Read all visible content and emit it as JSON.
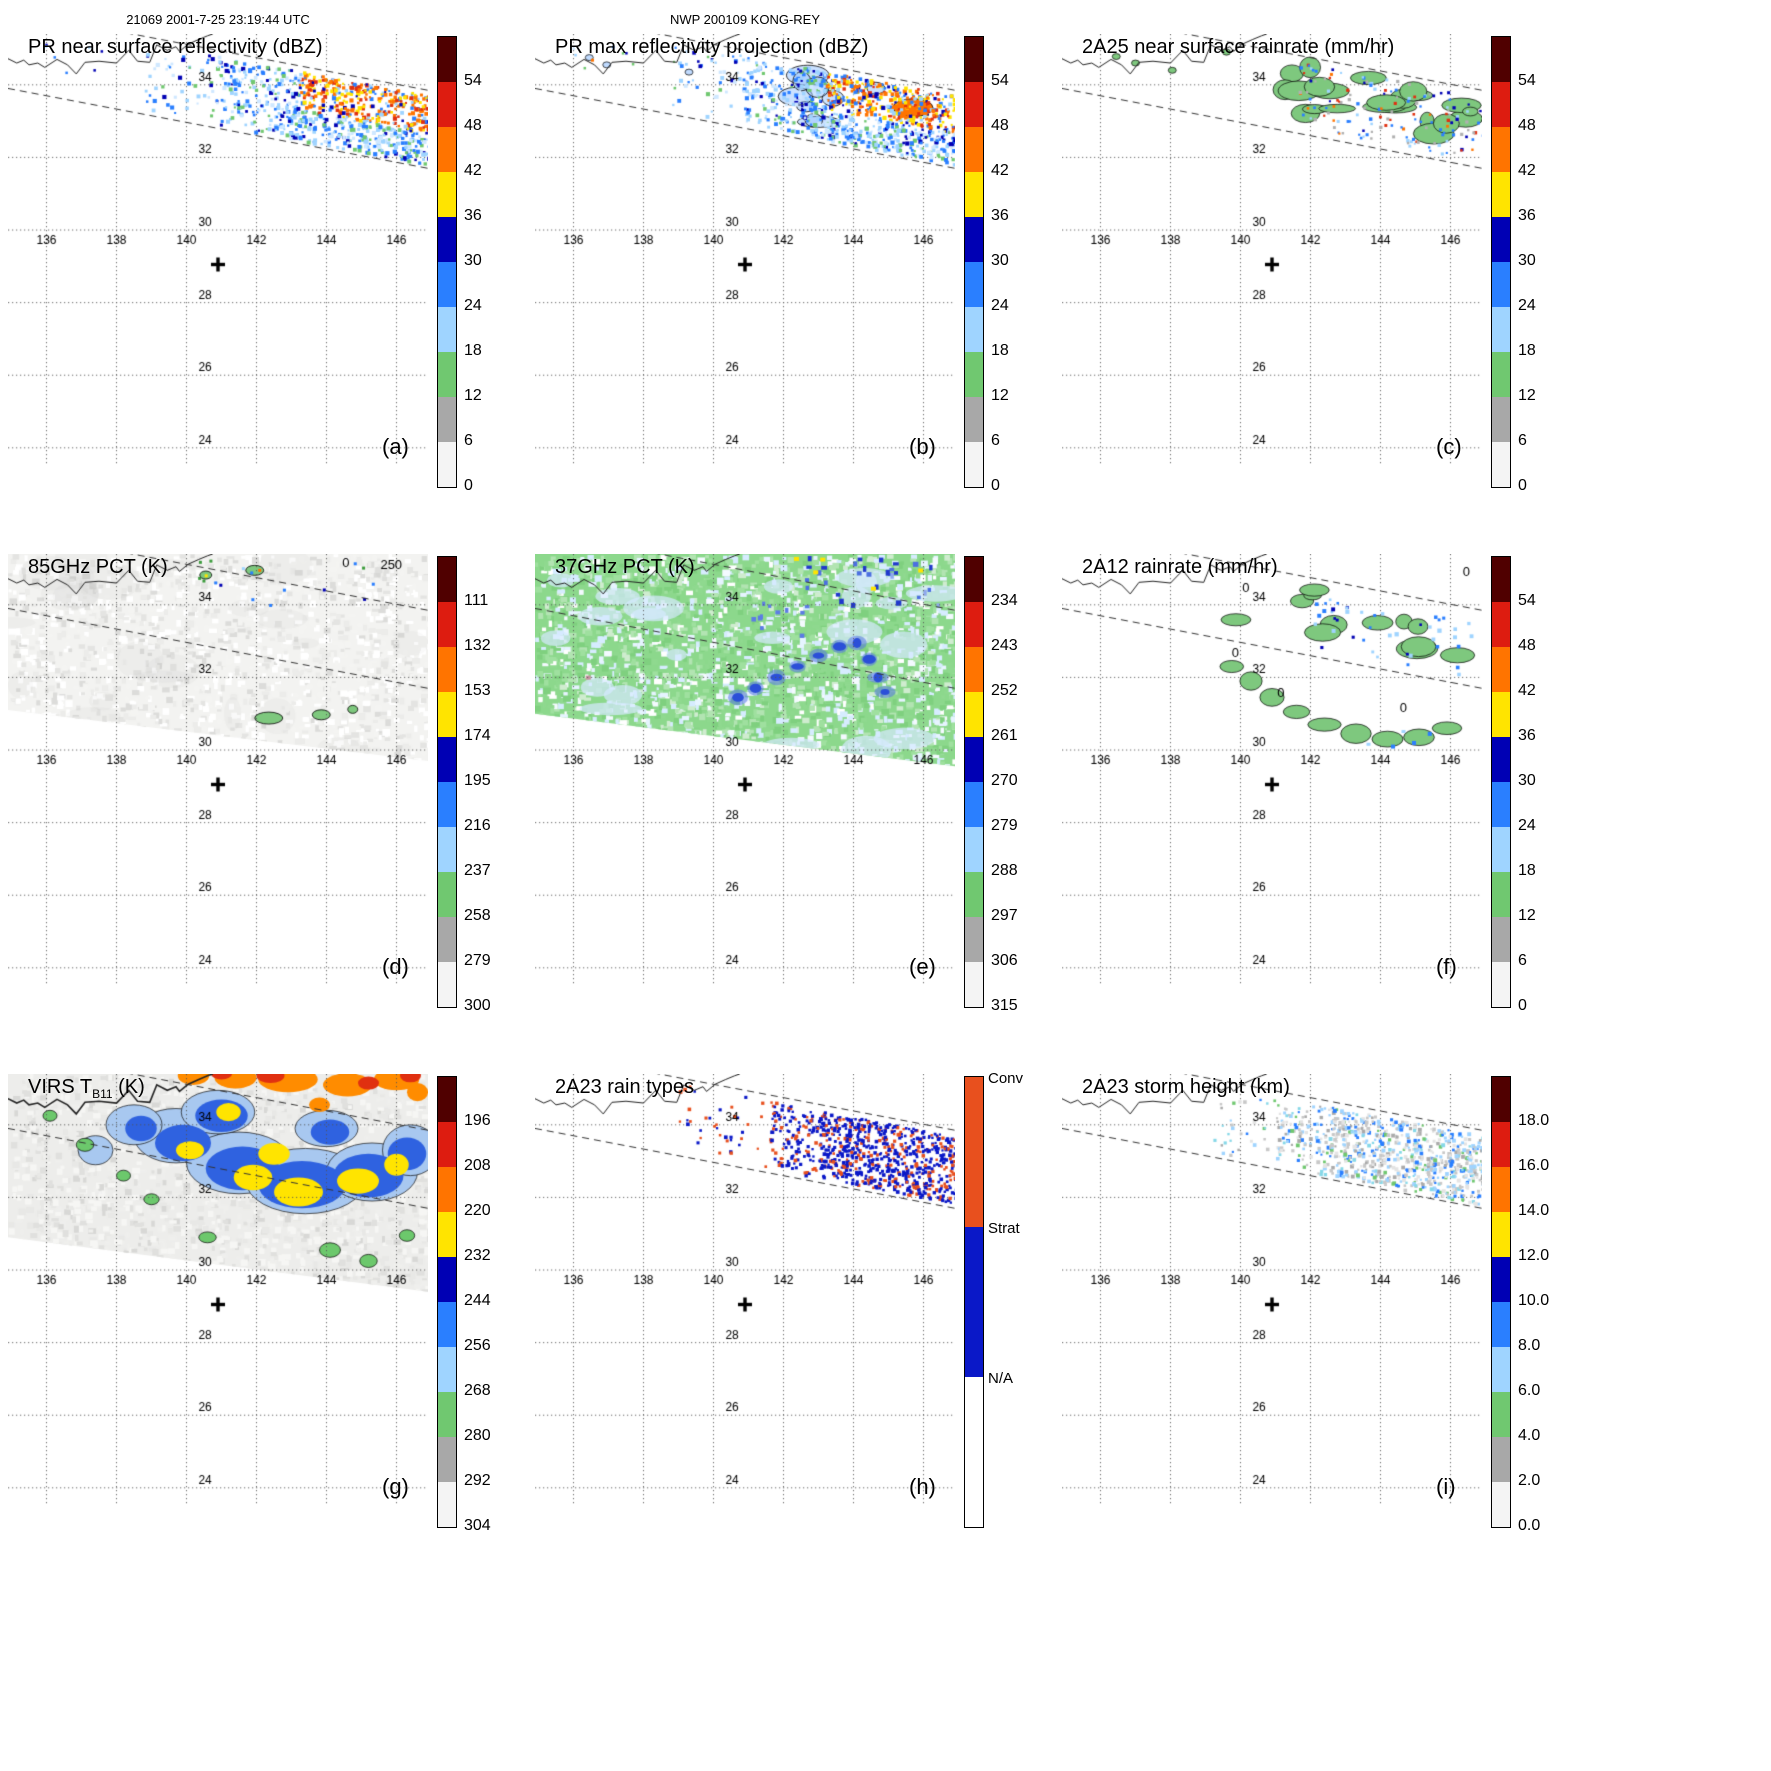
{
  "header": {
    "left": "21069 2001-7-25 23:19:44 UTC",
    "center": "NWP 200109 KONG-REY"
  },
  "axes": {
    "lon_ticks": [
      136,
      138,
      140,
      142,
      144,
      146
    ],
    "lat_ticks": [
      24,
      26,
      28,
      30,
      32,
      34
    ],
    "lon_range": [
      134.9,
      146.9
    ],
    "lat_range": [
      23.6,
      35.4
    ],
    "center_marker": {
      "lon": 140.9,
      "lat": 29.05
    }
  },
  "palettes": {
    "standard_segments_top_to_bottom": [
      "#500000",
      "#dd1c10",
      "#ff7400",
      "#ffe400",
      "#0000b4",
      "#2a7fff",
      "#9fd4ff",
      "#70c870",
      "#a8a8a8",
      "#f4f4f4"
    ],
    "raintype_segments": [
      {
        "label": "Conv",
        "color": "#e8501e"
      },
      {
        "label": "Strat",
        "color": "#0a18c8"
      },
      {
        "label": "N/A",
        "color": "#ffffff"
      }
    ]
  },
  "chart_data": {
    "type": "heatmap",
    "title": "TRMM orbit 21069 multi-sensor overpass panels for NWP 200109 KONG-REY",
    "orbit": "21069",
    "datetime": "2001-7-25 23:19:44 UTC",
    "basin": "NWP",
    "storm_id": "200109",
    "storm_name": "KONG-REY",
    "grid": true,
    "panels": [
      {
        "letter": "(a)",
        "title": "PR near surface reflectivity (dBZ)",
        "units": "dBZ",
        "style": "pr_scatter",
        "cbar_ticks": [
          "54",
          "48",
          "42",
          "36",
          "30",
          "24",
          "18",
          "12",
          "6",
          "0"
        ]
      },
      {
        "letter": "(b)",
        "title": "PR max reflectivity projection (dBZ)",
        "units": "dBZ",
        "style": "pr_proj",
        "cbar_ticks": [
          "54",
          "48",
          "42",
          "36",
          "30",
          "24",
          "18",
          "12",
          "6",
          "0"
        ]
      },
      {
        "letter": "(c)",
        "title": "2A25 near surface rainrate (mm/hr)",
        "units": "mm/hr",
        "style": "rain_contour",
        "cbar_ticks": [
          "54",
          "48",
          "42",
          "36",
          "30",
          "24",
          "18",
          "12",
          "6",
          "0"
        ]
      },
      {
        "letter": "(d)",
        "title": "85GHz PCT (K)",
        "units": "K",
        "style": "pct85",
        "cbar_ticks": [
          "111",
          "132",
          "153",
          "174",
          "195",
          "216",
          "237",
          "258",
          "279",
          "300"
        ],
        "annotations": [
          {
            "text": "0",
            "lon": 144.55,
            "lat": 35.05
          },
          {
            "text": "250",
            "lon": 145.85,
            "lat": 35.0
          }
        ]
      },
      {
        "letter": "(e)",
        "title": "37GHz PCT (K)",
        "units": "K",
        "style": "pct37",
        "cbar_ticks": [
          "234",
          "243",
          "252",
          "261",
          "270",
          "279",
          "288",
          "297",
          "306",
          "315"
        ]
      },
      {
        "letter": "(f)",
        "title": "2A12 rainrate (mm/hr)",
        "units": "mm/hr",
        "style": "tmi_rain",
        "cbar_ticks": [
          "54",
          "48",
          "42",
          "36",
          "30",
          "24",
          "18",
          "12",
          "6",
          "0"
        ],
        "annotations": [
          {
            "text": "0",
            "lon": 140.15,
            "lat": 34.35
          },
          {
            "text": "0",
            "lon": 146.45,
            "lat": 34.8
          },
          {
            "text": "0",
            "lon": 139.85,
            "lat": 32.55
          },
          {
            "text": "0",
            "lon": 141.15,
            "lat": 31.45
          },
          {
            "text": "0",
            "lon": 144.65,
            "lat": 31.05
          }
        ]
      },
      {
        "letter": "(g)",
        "title": "VIRS T",
        "title_sub": "B11",
        "title_suffix": " (K)",
        "units": "K",
        "style": "virs",
        "cbar_ticks": [
          "196",
          "208",
          "220",
          "232",
          "244",
          "256",
          "268",
          "280",
          "292",
          "304"
        ]
      },
      {
        "letter": "(h)",
        "title": "2A23 rain types",
        "units": "",
        "style": "raintype",
        "cbar_type": "raintype",
        "cbar_labels": [
          "Conv",
          "Strat",
          "N/A"
        ]
      },
      {
        "letter": "(i)",
        "title": "2A23 storm height (km)",
        "units": "km",
        "style": "height",
        "cbar_ticks": [
          "18.0",
          "16.0",
          "14.0",
          "12.0",
          "10.0",
          "8.0",
          "6.0",
          "4.0",
          "2.0",
          "0.0"
        ]
      }
    ]
  }
}
